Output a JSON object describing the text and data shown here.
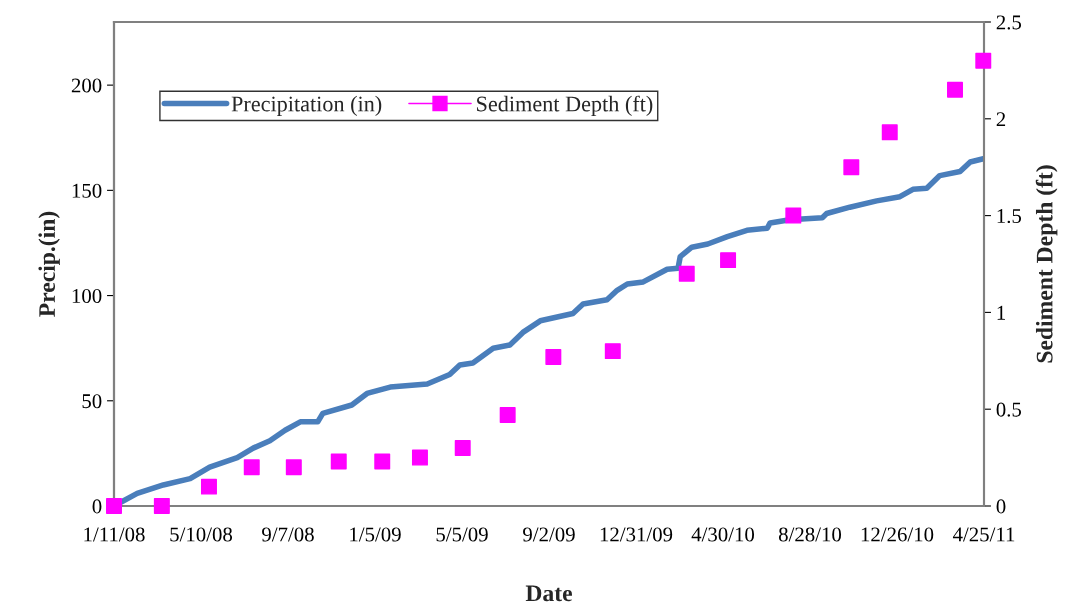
{
  "chart_data": {
    "type": "line",
    "xlabel": "Date",
    "ylabel": "Precip.(in)",
    "y2label": "Sediment Depth (ft)",
    "xlim": [
      "2008-01-11",
      "2011-04-25"
    ],
    "xticks": [
      {
        "value": "2008-01-11",
        "label": "1/11/08"
      },
      {
        "value": "2008-05-10",
        "label": "5/10/08"
      },
      {
        "value": "2008-09-07",
        "label": "9/7/08"
      },
      {
        "value": "2009-01-05",
        "label": "1/5/09"
      },
      {
        "value": "2009-05-05",
        "label": "5/5/09"
      },
      {
        "value": "2009-09-02",
        "label": "9/2/09"
      },
      {
        "value": "2009-12-31",
        "label": "12/31/09"
      },
      {
        "value": "2010-04-30",
        "label": "4/30/10"
      },
      {
        "value": "2010-08-28",
        "label": "8/28/10"
      },
      {
        "value": "2010-12-26",
        "label": "12/26/10"
      },
      {
        "value": "2011-04-25",
        "label": "4/25/11"
      }
    ],
    "ylim": [
      0,
      230
    ],
    "yticks": [
      0,
      50,
      100,
      150,
      200
    ],
    "y2lim": [
      0,
      2.5
    ],
    "y2ticks": [
      0,
      0.5,
      1,
      1.5,
      2,
      2.5
    ],
    "grid": false,
    "legend": "top left",
    "series": [
      {
        "name": "Precipitation (in)",
        "color": "#4a7ebb",
        "marker": "none",
        "line_style": "solid",
        "x": [
          "2008-01-11",
          "2008-02-12",
          "2008-03-19",
          "2008-04-25",
          "2008-05-22",
          "2008-06-29",
          "2008-07-21",
          "2008-08-13",
          "2008-09-03",
          "2008-09-24",
          "2008-10-18",
          "2008-10-25",
          "2008-12-04",
          "2008-12-25",
          "2009-01-26",
          "2009-03-18",
          "2009-04-18",
          "2009-05-02",
          "2009-05-20",
          "2009-06-17",
          "2009-07-10",
          "2009-07-28",
          "2009-08-21",
          "2009-10-05",
          "2009-10-19",
          "2009-11-21",
          "2009-12-05",
          "2009-12-19",
          "2010-01-10",
          "2010-02-12",
          "2010-02-27",
          "2010-03-02",
          "2010-03-18",
          "2010-04-09",
          "2010-05-06",
          "2010-06-02",
          "2010-06-30",
          "2010-07-04",
          "2010-07-31",
          "2010-09-14",
          "2010-09-20",
          "2010-10-22",
          "2010-11-28",
          "2010-12-30",
          "2011-01-17",
          "2011-02-05",
          "2011-02-23",
          "2011-03-23",
          "2011-04-06",
          "2011-04-24"
        ],
        "values": [
          0,
          6,
          10,
          13,
          18.5,
          23,
          27.5,
          31,
          36,
          40,
          40,
          44,
          48,
          53.5,
          56.5,
          58,
          62.5,
          67,
          68,
          75,
          76.5,
          82.5,
          88,
          91.5,
          96,
          98,
          102.5,
          105.5,
          106.5,
          112.5,
          113,
          118.5,
          123,
          124.5,
          128,
          131,
          132,
          134.5,
          136,
          137,
          139,
          142,
          145,
          147,
          150.5,
          151,
          157,
          159,
          163.5,
          165
        ]
      },
      {
        "name": "Sediment Depth (ft)",
        "type": "scatter",
        "axis": "y2",
        "color": "#ff00ff",
        "marker": "square",
        "x": [
          "2008-01-11",
          "2008-03-17",
          "2008-05-21",
          "2008-07-19",
          "2008-09-15",
          "2008-11-16",
          "2009-01-15",
          "2009-03-08",
          "2009-05-06",
          "2009-07-07",
          "2009-09-08",
          "2009-11-29",
          "2010-03-11",
          "2010-05-07",
          "2010-08-05",
          "2010-10-24",
          "2010-12-16",
          "2011-03-16",
          "2011-04-24"
        ],
        "values": [
          0,
          0,
          0.1,
          0.2,
          0.2,
          0.23,
          0.23,
          0.25,
          0.3,
          0.47,
          0.77,
          0.8,
          1.2,
          1.27,
          1.5,
          1.75,
          1.93,
          2.15,
          2.3
        ]
      }
    ]
  }
}
